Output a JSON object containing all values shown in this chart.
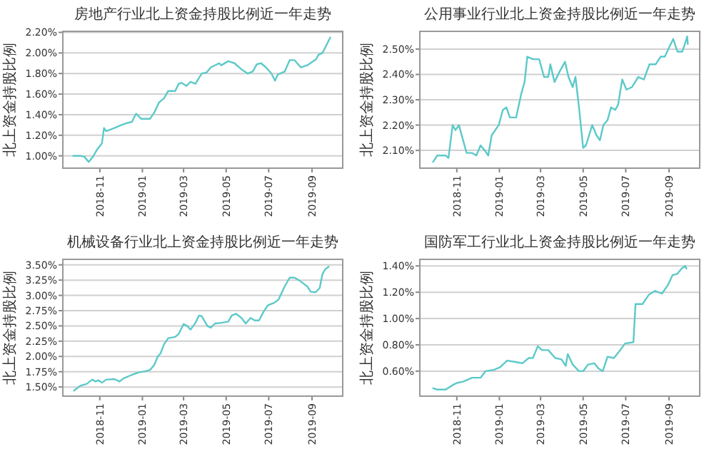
{
  "chart_data": [
    {
      "type": "line",
      "title": "房地产行业北上资金持股比例近一年走势",
      "ylabel": "北上资金持股比例",
      "grid": "y",
      "xlim": [
        "2018-09-09",
        "2019-10-15"
      ],
      "xticks": [
        {
          "value": "2018-11-01",
          "label": "2018-11"
        },
        {
          "value": "2019-01-01",
          "label": "2019-01"
        },
        {
          "value": "2019-03-01",
          "label": "2019-03"
        },
        {
          "value": "2019-05-01",
          "label": "2019-05"
        },
        {
          "value": "2019-07-01",
          "label": "2019-07"
        },
        {
          "value": "2019-09-01",
          "label": "2019-09"
        }
      ],
      "ylim": [
        0.88,
        2.21
      ],
      "yticks": [
        {
          "value": 1.0,
          "label": "1.00%"
        },
        {
          "value": 1.2,
          "label": "1.20%"
        },
        {
          "value": 1.4,
          "label": "1.40%"
        },
        {
          "value": 1.6,
          "label": "1.60%"
        },
        {
          "value": 1.8,
          "label": "1.80%"
        },
        {
          "value": 2.0,
          "label": "2.00%"
        },
        {
          "value": 2.2,
          "label": "2.20%"
        }
      ],
      "x": [
        "2018-09-24",
        "2018-10-04",
        "2018-10-10",
        "2018-10-16",
        "2018-10-22",
        "2018-10-28",
        "2018-11-04",
        "2018-11-07",
        "2018-11-10",
        "2018-11-22",
        "2018-12-02",
        "2018-12-11",
        "2018-12-17",
        "2018-12-23",
        "2018-12-30",
        "2019-01-12",
        "2019-01-18",
        "2019-01-25",
        "2019-02-01",
        "2019-02-07",
        "2019-02-17",
        "2019-02-22",
        "2019-02-26",
        "2019-03-05",
        "2019-03-11",
        "2019-03-18",
        "2019-03-27",
        "2019-04-03",
        "2019-04-09",
        "2019-04-21",
        "2019-04-24",
        "2019-05-04",
        "2019-05-13",
        "2019-05-23",
        "2019-06-01",
        "2019-06-08",
        "2019-06-14",
        "2019-06-20",
        "2019-06-27",
        "2019-07-05",
        "2019-07-10",
        "2019-07-14",
        "2019-07-24",
        "2019-07-31",
        "2019-08-07",
        "2019-08-16",
        "2019-08-25",
        "2019-09-07",
        "2019-09-10",
        "2019-09-16",
        "2019-09-22",
        "2019-09-27"
      ],
      "series": [
        {
          "color": "#5cc9c9",
          "values": [
            1.0,
            1.0,
            0.99,
            0.94,
            0.99,
            1.06,
            1.12,
            1.27,
            1.24,
            1.27,
            1.3,
            1.32,
            1.33,
            1.41,
            1.36,
            1.36,
            1.42,
            1.52,
            1.56,
            1.63,
            1.63,
            1.7,
            1.71,
            1.68,
            1.72,
            1.7,
            1.8,
            1.81,
            1.86,
            1.9,
            1.88,
            1.92,
            1.9,
            1.84,
            1.8,
            1.82,
            1.89,
            1.9,
            1.86,
            1.8,
            1.73,
            1.79,
            1.82,
            1.93,
            1.93,
            1.86,
            1.88,
            1.94,
            1.98,
            2.0,
            2.08,
            2.15
          ]
        }
      ]
    },
    {
      "type": "line",
      "title": "公用事业行业北上资金持股比例近一年走势",
      "ylabel": "北上资金持股比例",
      "grid": "y",
      "xlim": [
        "2018-09-09",
        "2019-10-15"
      ],
      "xticks": [
        {
          "value": "2018-11-01",
          "label": "2018-11"
        },
        {
          "value": "2019-01-01",
          "label": "2019-01"
        },
        {
          "value": "2019-03-01",
          "label": "2019-03"
        },
        {
          "value": "2019-05-01",
          "label": "2019-05"
        },
        {
          "value": "2019-07-01",
          "label": "2019-07"
        },
        {
          "value": "2019-09-01",
          "label": "2019-09"
        }
      ],
      "ylim": [
        2.03,
        2.57
      ],
      "yticks": [
        {
          "value": 2.1,
          "label": "2.10%"
        },
        {
          "value": 2.2,
          "label": "2.20%"
        },
        {
          "value": 2.3,
          "label": "2.30%"
        },
        {
          "value": 2.4,
          "label": "2.40%"
        },
        {
          "value": 2.5,
          "label": "2.50%"
        }
      ],
      "x": [
        "2018-09-28",
        "2018-10-04",
        "2018-10-16",
        "2018-10-20",
        "2018-10-26",
        "2018-10-30",
        "2018-11-04",
        "2018-11-10",
        "2018-11-15",
        "2018-11-23",
        "2018-11-29",
        "2018-12-05",
        "2018-12-11",
        "2018-12-16",
        "2018-12-21",
        "2018-12-31",
        "2019-01-06",
        "2019-01-11",
        "2019-01-16",
        "2019-01-25",
        "2019-02-01",
        "2019-02-06",
        "2019-02-10",
        "2019-02-18",
        "2019-02-27",
        "2019-03-06",
        "2019-03-12",
        "2019-03-15",
        "2019-03-21",
        "2019-03-28",
        "2019-04-05",
        "2019-04-10",
        "2019-04-16",
        "2019-04-20",
        "2019-04-25",
        "2019-05-01",
        "2019-05-05",
        "2019-05-14",
        "2019-05-20",
        "2019-05-25",
        "2019-05-30",
        "2019-06-05",
        "2019-06-10",
        "2019-06-16",
        "2019-06-20",
        "2019-06-26",
        "2019-07-02",
        "2019-07-10",
        "2019-07-19",
        "2019-07-27",
        "2019-08-04",
        "2019-08-13",
        "2019-08-20",
        "2019-08-26",
        "2019-08-31",
        "2019-09-07",
        "2019-09-13",
        "2019-09-20",
        "2019-09-25",
        "2019-09-27",
        "2019-09-28"
      ],
      "series": [
        {
          "color": "#5cc9c9",
          "values": [
            2.055,
            2.08,
            2.08,
            2.07,
            2.2,
            2.18,
            2.2,
            2.14,
            2.09,
            2.09,
            2.08,
            2.12,
            2.1,
            2.08,
            2.16,
            2.2,
            2.26,
            2.27,
            2.23,
            2.23,
            2.32,
            2.37,
            2.47,
            2.46,
            2.46,
            2.39,
            2.39,
            2.44,
            2.37,
            2.41,
            2.45,
            2.39,
            2.35,
            2.39,
            2.27,
            2.11,
            2.12,
            2.2,
            2.16,
            2.14,
            2.2,
            2.22,
            2.27,
            2.26,
            2.28,
            2.38,
            2.34,
            2.35,
            2.39,
            2.38,
            2.44,
            2.44,
            2.47,
            2.47,
            2.5,
            2.54,
            2.49,
            2.49,
            2.53,
            2.55,
            2.52
          ]
        }
      ]
    },
    {
      "type": "line",
      "title": "机械设备行业北上资金持股比例近一年走势",
      "ylabel": "北上资金持股比例",
      "grid": "y",
      "xlim": [
        "2018-09-09",
        "2019-10-15"
      ],
      "xticks": [
        {
          "value": "2018-11-01",
          "label": "2018-11"
        },
        {
          "value": "2019-01-01",
          "label": "2019-01"
        },
        {
          "value": "2019-03-01",
          "label": "2019-03"
        },
        {
          "value": "2019-05-01",
          "label": "2019-05"
        },
        {
          "value": "2019-07-01",
          "label": "2019-07"
        },
        {
          "value": "2019-09-01",
          "label": "2019-09"
        }
      ],
      "ylim": [
        1.35,
        3.59
      ],
      "yticks": [
        {
          "value": 1.5,
          "label": "1.50%"
        },
        {
          "value": 1.75,
          "label": "1.75%"
        },
        {
          "value": 2.0,
          "label": "2.00%"
        },
        {
          "value": 2.25,
          "label": "2.25%"
        },
        {
          "value": 2.5,
          "label": "2.50%"
        },
        {
          "value": 2.75,
          "label": "2.75%"
        },
        {
          "value": 3.0,
          "label": "3.00%"
        },
        {
          "value": 3.25,
          "label": "3.25%"
        },
        {
          "value": 3.5,
          "label": "3.50%"
        }
      ],
      "x": [
        "2018-09-25",
        "2018-10-04",
        "2018-10-13",
        "2018-10-21",
        "2018-10-26",
        "2018-10-30",
        "2018-11-04",
        "2018-11-10",
        "2018-11-22",
        "2018-11-29",
        "2018-12-05",
        "2018-12-17",
        "2018-12-27",
        "2019-01-06",
        "2019-01-12",
        "2019-01-18",
        "2019-01-23",
        "2019-01-27",
        "2019-02-01",
        "2019-02-07",
        "2019-02-17",
        "2019-02-22",
        "2019-03-01",
        "2019-03-06",
        "2019-03-11",
        "2019-03-18",
        "2019-03-23",
        "2019-03-27",
        "2019-04-04",
        "2019-04-09",
        "2019-04-15",
        "2019-04-24",
        "2019-05-04",
        "2019-05-09",
        "2019-05-15",
        "2019-05-23",
        "2019-05-29",
        "2019-06-05",
        "2019-06-11",
        "2019-06-17",
        "2019-06-24",
        "2019-06-30",
        "2019-07-09",
        "2019-07-15",
        "2019-07-24",
        "2019-07-31",
        "2019-08-07",
        "2019-08-13",
        "2019-08-25",
        "2019-08-30",
        "2019-09-06",
        "2019-09-12",
        "2019-09-16",
        "2019-09-20",
        "2019-09-25"
      ],
      "series": [
        {
          "color": "#5cc9c9",
          "values": [
            1.44,
            1.52,
            1.55,
            1.62,
            1.59,
            1.61,
            1.57,
            1.62,
            1.63,
            1.59,
            1.64,
            1.7,
            1.74,
            1.76,
            1.78,
            1.86,
            2.0,
            2.05,
            2.2,
            2.3,
            2.32,
            2.37,
            2.53,
            2.5,
            2.44,
            2.55,
            2.67,
            2.66,
            2.5,
            2.47,
            2.54,
            2.55,
            2.57,
            2.67,
            2.7,
            2.63,
            2.54,
            2.63,
            2.59,
            2.59,
            2.74,
            2.84,
            2.88,
            2.93,
            3.15,
            3.29,
            3.29,
            3.25,
            3.15,
            3.06,
            3.05,
            3.12,
            3.35,
            3.43,
            3.47
          ]
        }
      ]
    },
    {
      "type": "line",
      "title": "国防军工行业北上资金持股比例近一年走势",
      "ylabel": "北上资金持股比例",
      "grid": "y",
      "xlim": [
        "2018-09-09",
        "2019-10-15"
      ],
      "xticks": [
        {
          "value": "2018-11-01",
          "label": "2018-11"
        },
        {
          "value": "2019-01-01",
          "label": "2019-01"
        },
        {
          "value": "2019-03-01",
          "label": "2019-03"
        },
        {
          "value": "2019-05-01",
          "label": "2019-05"
        },
        {
          "value": "2019-07-01",
          "label": "2019-07"
        },
        {
          "value": "2019-09-01",
          "label": "2019-09"
        }
      ],
      "ylim": [
        0.41,
        1.45
      ],
      "yticks": [
        {
          "value": 0.6,
          "label": "0.60%"
        },
        {
          "value": 0.8,
          "label": "0.80%"
        },
        {
          "value": 1.0,
          "label": "1.00%"
        },
        {
          "value": 1.2,
          "label": "1.20%"
        },
        {
          "value": 1.4,
          "label": "1.40%"
        }
      ],
      "x": [
        "2018-09-28",
        "2018-10-04",
        "2018-10-16",
        "2018-10-28",
        "2018-11-01",
        "2018-11-10",
        "2018-11-23",
        "2018-12-05",
        "2018-12-12",
        "2018-12-24",
        "2019-01-02",
        "2019-01-12",
        "2019-01-24",
        "2019-02-03",
        "2019-02-12",
        "2019-02-18",
        "2019-02-25",
        "2019-03-03",
        "2019-03-12",
        "2019-03-22",
        "2019-03-31",
        "2019-04-06",
        "2019-04-09",
        "2019-04-16",
        "2019-04-25",
        "2019-05-01",
        "2019-05-08",
        "2019-05-17",
        "2019-05-23",
        "2019-05-29",
        "2019-06-05",
        "2019-06-14",
        "2019-06-23",
        "2019-06-30",
        "2019-07-12",
        "2019-07-15",
        "2019-07-25",
        "2019-08-03",
        "2019-08-12",
        "2019-08-22",
        "2019-08-31",
        "2019-09-06",
        "2019-09-13",
        "2019-09-19",
        "2019-09-24",
        "2019-09-26"
      ],
      "series": [
        {
          "color": "#5cc9c9",
          "values": [
            0.47,
            0.46,
            0.46,
            0.5,
            0.51,
            0.52,
            0.55,
            0.55,
            0.6,
            0.61,
            0.63,
            0.68,
            0.67,
            0.66,
            0.7,
            0.7,
            0.79,
            0.76,
            0.76,
            0.7,
            0.69,
            0.64,
            0.73,
            0.65,
            0.6,
            0.6,
            0.65,
            0.66,
            0.62,
            0.6,
            0.71,
            0.7,
            0.76,
            0.81,
            0.82,
            1.11,
            1.11,
            1.18,
            1.21,
            1.19,
            1.26,
            1.33,
            1.34,
            1.38,
            1.4,
            1.38
          ]
        }
      ]
    }
  ]
}
